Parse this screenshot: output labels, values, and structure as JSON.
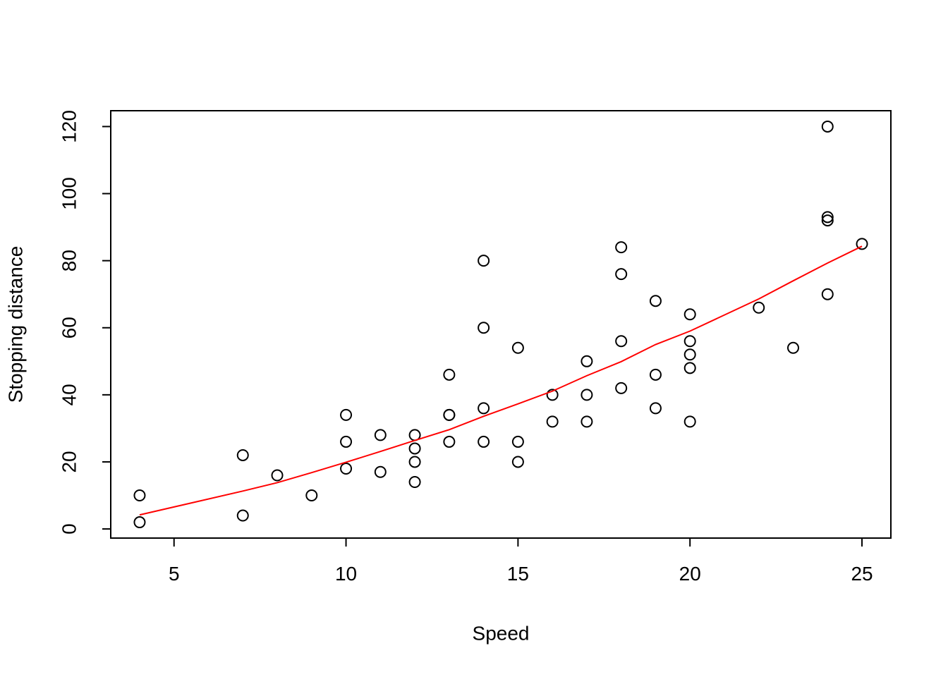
{
  "chart_data": {
    "type": "scatter",
    "xlabel": "Speed",
    "ylabel": "Stopping distance",
    "x": [
      4,
      4,
      7,
      7,
      8,
      9,
      10,
      10,
      10,
      11,
      11,
      12,
      12,
      12,
      12,
      13,
      13,
      13,
      13,
      14,
      14,
      14,
      14,
      15,
      15,
      15,
      16,
      16,
      17,
      17,
      17,
      18,
      18,
      18,
      18,
      19,
      19,
      19,
      20,
      20,
      20,
      20,
      20,
      22,
      23,
      24,
      24,
      24,
      24,
      25
    ],
    "y": [
      2,
      10,
      4,
      22,
      16,
      10,
      18,
      26,
      34,
      17,
      28,
      14,
      20,
      24,
      28,
      26,
      34,
      34,
      46,
      26,
      36,
      60,
      80,
      20,
      26,
      54,
      32,
      40,
      32,
      40,
      50,
      42,
      56,
      76,
      84,
      36,
      46,
      68,
      32,
      48,
      52,
      56,
      64,
      66,
      54,
      70,
      92,
      93,
      120,
      85
    ],
    "point_color": "#000000",
    "fit": {
      "color": "#ff0000",
      "x": [
        4,
        7,
        8,
        9,
        10,
        11,
        12,
        13,
        14,
        15,
        16,
        17,
        18,
        19,
        20,
        22,
        23,
        24,
        25
      ],
      "y": [
        4.2,
        11.3,
        13.8,
        16.8,
        19.9,
        23.1,
        26.4,
        29.6,
        33.6,
        37.3,
        41.1,
        45.7,
        49.9,
        55.0,
        59.0,
        68.6,
        74.0,
        79.3,
        84.3
      ]
    },
    "xlim": [
      3.16,
      25.84
    ],
    "ylim": [
      -2.72,
      124.72
    ],
    "xticks": [
      5,
      10,
      15,
      20,
      25
    ],
    "yticks": [
      0,
      20,
      40,
      60,
      80,
      100,
      120
    ],
    "grid": false
  }
}
